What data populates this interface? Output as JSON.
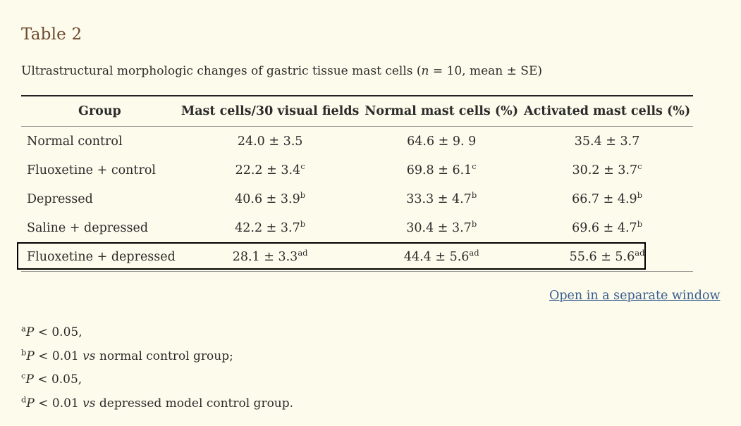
{
  "title": "Table 2",
  "caption": {
    "before": "Ultrastructural morphologic changes of gastric tissue mast cells (",
    "n_var": "n",
    "after": " = 10, mean ± SE)"
  },
  "table": {
    "headers": [
      "Group",
      "Mast cells/30 visual fields",
      "Normal mast cells (%)",
      "Activated mast cells (%)"
    ],
    "rows": [
      {
        "group": "Normal control",
        "cells": [
          {
            "value": "24.0 ± 3.5",
            "sup": ""
          },
          {
            "value": "64.6 ± 9. 9",
            "sup": ""
          },
          {
            "value": "35.4 ± 3.7",
            "sup": ""
          }
        ]
      },
      {
        "group": "Fluoxetine + control",
        "cells": [
          {
            "value": "22.2 ± 3.4",
            "sup": "c"
          },
          {
            "value": "69.8 ± 6.1",
            "sup": "c"
          },
          {
            "value": "30.2 ± 3.7",
            "sup": "c"
          }
        ]
      },
      {
        "group": "Depressed",
        "cells": [
          {
            "value": "40.6 ± 3.9",
            "sup": "b"
          },
          {
            "value": "33.3 ± 4.7",
            "sup": "b"
          },
          {
            "value": "66.7 ± 4.9",
            "sup": "b"
          }
        ]
      },
      {
        "group": "Saline + depressed",
        "cells": [
          {
            "value": "42.2 ± 3.7",
            "sup": "b"
          },
          {
            "value": "30.4 ± 3.7",
            "sup": "b"
          },
          {
            "value": "69.6 ± 4.7",
            "sup": "b"
          }
        ]
      },
      {
        "group": "Fluoxetine + depressed",
        "cells": [
          {
            "value": "28.1 ± 3.3",
            "sup": "ad"
          },
          {
            "value": "44.4 ± 5.6",
            "sup": "ad"
          },
          {
            "value": "55.6 ± 5.6",
            "sup": "ad"
          }
        ]
      }
    ]
  },
  "open_link_label": "Open in a separate window",
  "footnotes": [
    {
      "mark": "a",
      "p": "P",
      "text": " < 0.05,",
      "vs": "",
      "rest": ""
    },
    {
      "mark": "b",
      "p": "P",
      "text": " < 0.01 ",
      "vs": "vs",
      "rest": " normal control group;"
    },
    {
      "mark": "c",
      "p": "P",
      "text": " < 0.05,",
      "vs": "",
      "rest": ""
    },
    {
      "mark": "d",
      "p": "P",
      "text": " < 0.01 ",
      "vs": "vs",
      "rest": " depressed model control group."
    }
  ]
}
